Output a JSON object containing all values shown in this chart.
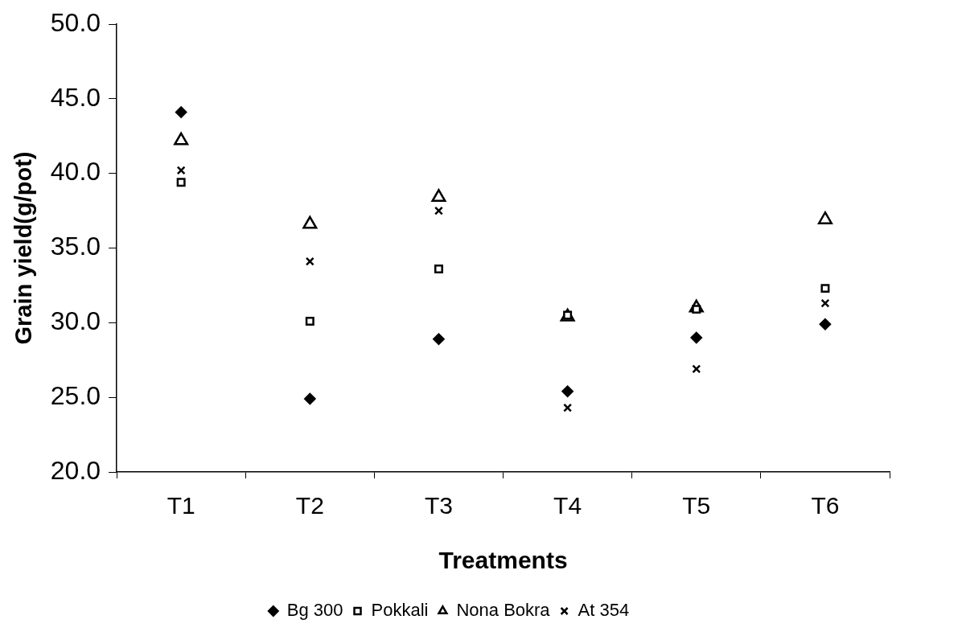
{
  "chart_data": {
    "type": "scatter",
    "xlabel": "Treatments",
    "ylabel": "Grain yield(g/pot)",
    "categories": [
      "T1",
      "T2",
      "T3",
      "T4",
      "T5",
      "T6"
    ],
    "series": [
      {
        "name": "Bg 300",
        "color": "#000000",
        "marker": "diamond",
        "values": [
          44.1,
          24.9,
          28.9,
          25.4,
          29.0,
          29.9
        ]
      },
      {
        "name": "Pokkali",
        "color": "#000000",
        "marker": "square",
        "values": [
          39.4,
          30.1,
          33.6,
          30.5,
          30.9,
          32.3
        ]
      },
      {
        "name": "Nona Bokra",
        "color": "#000000",
        "marker": "triangle",
        "values": [
          42.2,
          36.6,
          38.4,
          30.4,
          31.0,
          36.9
        ]
      },
      {
        "name": "At 354",
        "color": "#000000",
        "marker": "cross",
        "values": [
          40.2,
          34.1,
          37.5,
          24.3,
          26.9,
          31.3
        ]
      }
    ],
    "ylim": [
      20,
      50
    ],
    "yticks": [
      {
        "value": 20,
        "label": "20.0"
      },
      {
        "value": 25,
        "label": "25.0"
      },
      {
        "value": 30,
        "label": "30.0"
      },
      {
        "value": 35,
        "label": "35.0"
      },
      {
        "value": 40,
        "label": "40.0"
      },
      {
        "value": 45,
        "label": "45.0"
      },
      {
        "value": 50,
        "label": "50.0"
      }
    ],
    "grid": false,
    "legend": "bottom"
  }
}
